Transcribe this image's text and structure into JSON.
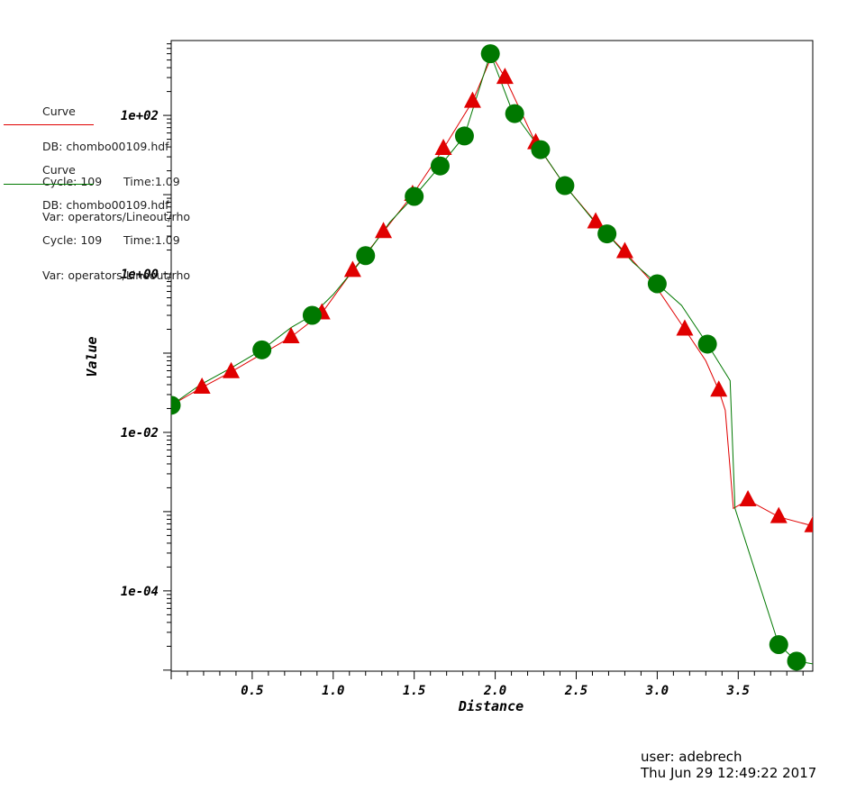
{
  "legend": [
    {
      "title": "Curve",
      "db": "DB: chombo00109.hdf",
      "cycle": "Cycle: 109      Time:1.09",
      "var": "Var: operators/Lineout/rho",
      "color": "#e00000"
    },
    {
      "title": "Curve",
      "db": "DB: chombo00109.hdf",
      "cycle": "Cycle: 109      Time:1.09",
      "var": "Var: operators/Lineout/rho",
      "color": "#007800"
    }
  ],
  "footer": {
    "user": "user: adebrech",
    "date": "Thu Jun 29 12:49:22 2017"
  },
  "chart_data": {
    "type": "line",
    "xlabel": "Distance",
    "ylabel": "Value",
    "xlim": [
      0,
      3.96
    ],
    "ylim": [
      9.7e-06,
      880
    ],
    "yscale": "log",
    "x_ticks": [
      "0.5",
      "1.0",
      "1.5",
      "2.0",
      "2.5",
      "3.0",
      "3.5"
    ],
    "x_tick_values": [
      0.5,
      1.0,
      1.5,
      2.0,
      2.5,
      3.0,
      3.5
    ],
    "y_ticks": [
      "1e-04",
      "1e-02",
      "1e+00",
      "1e+02"
    ],
    "y_tick_values": [
      0.0001,
      0.01,
      1,
      100
    ],
    "grid": false,
    "series": [
      {
        "color": "#e00000",
        "marker": "triangle",
        "x": [
          0.0,
          0.19,
          0.37,
          0.55,
          0.74,
          0.93,
          1.12,
          1.31,
          1.49,
          1.68,
          1.86,
          1.98,
          2.06,
          2.25,
          2.43,
          2.62,
          2.8,
          2.99,
          3.17,
          3.3,
          3.38,
          3.42,
          3.47,
          3.56,
          3.75,
          3.96
        ],
        "y": [
          0.022,
          0.037,
          0.058,
          0.095,
          0.16,
          0.32,
          1.1,
          3.4,
          10,
          38,
          150,
          570,
          300,
          45,
          13,
          4.5,
          1.9,
          0.7,
          0.2,
          0.08,
          0.034,
          0.019,
          0.0011,
          0.0014,
          0.00086,
          0.00066
        ]
      },
      {
        "color": "#007800",
        "marker": "circle",
        "x": [
          0.0,
          0.18,
          0.37,
          0.56,
          0.74,
          0.87,
          1.0,
          1.2,
          1.35,
          1.5,
          1.66,
          1.81,
          1.97,
          2.1,
          2.28,
          2.43,
          2.6,
          2.69,
          2.85,
          3.0,
          3.15,
          3.31,
          3.45,
          3.48,
          3.75,
          3.86,
          3.96
        ],
        "y": [
          0.022,
          0.04,
          0.065,
          0.11,
          0.21,
          0.3,
          0.55,
          1.7,
          4.5,
          9.5,
          23,
          55,
          600,
          120,
          37,
          13,
          4.9,
          3.2,
          1.4,
          0.75,
          0.4,
          0.13,
          0.045,
          0.0011,
          2.1e-05,
          1.3e-05,
          1.2e-05
        ]
      }
    ],
    "markers": [
      {
        "series": 0,
        "x": [
          0.19,
          0.37,
          0.74,
          0.93,
          1.12,
          1.31,
          1.49,
          1.68,
          1.86,
          2.06,
          2.25,
          2.62,
          2.8,
          3.17,
          3.38,
          3.56,
          3.75,
          3.96
        ]
      },
      {
        "series": 1,
        "x": [
          0.0,
          0.56,
          0.87,
          1.2,
          1.5,
          1.66,
          1.81,
          1.97,
          2.12,
          2.28,
          2.43,
          2.69,
          3.0,
          3.31,
          3.75,
          3.86
        ]
      }
    ]
  }
}
